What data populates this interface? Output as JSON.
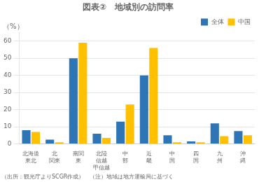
{
  "chart_data": {
    "type": "bar",
    "title": "図表②　地域別の訪問率",
    "ylabel": "（%）",
    "footnote": "（出所：観光庁よりSCGR作成）　（注）地域は地方運輸局に基づく",
    "categories": [
      "北海道\n東北",
      "北\n関東",
      "南関\n東",
      "北陸\n信越\n甲信越",
      "中\n部",
      "近\n畿",
      "中\n国",
      "四\n国",
      "九\n州",
      "沖\n縄"
    ],
    "series": [
      {
        "name": "全体",
        "color": "#2e75b6",
        "values": [
          8,
          2.5,
          50,
          6,
          13,
          40,
          5,
          1.5,
          12,
          7.5
        ]
      },
      {
        "name": "中国",
        "color": "#ffc000",
        "values": [
          7,
          1,
          59,
          3.5,
          23,
          56,
          1,
          1,
          4.5,
          5
        ]
      }
    ],
    "ylim": [
      0,
      65
    ],
    "yticks": [
      0,
      10,
      20,
      30,
      40,
      50,
      60
    ],
    "grid": true,
    "legend": "upper right"
  }
}
